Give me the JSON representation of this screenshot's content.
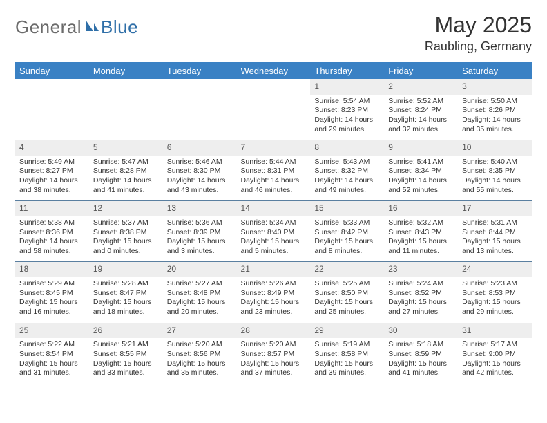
{
  "logo": {
    "part1": "General",
    "part2": "Blue"
  },
  "title": "May 2025",
  "location": "Raubling, Germany",
  "colors": {
    "header_bg": "#3a81c4",
    "header_text": "#ffffff",
    "daynum_bg": "#eeeeee",
    "rule": "#5a7fa0",
    "logo_gray": "#6b6b6b",
    "logo_blue": "#2f6fa8"
  },
  "weekdays": [
    "Sunday",
    "Monday",
    "Tuesday",
    "Wednesday",
    "Thursday",
    "Friday",
    "Saturday"
  ],
  "weeks": [
    {
      "nums": [
        "",
        "",
        "",
        "",
        "1",
        "2",
        "3"
      ],
      "cells": [
        "",
        "",
        "",
        "",
        "Sunrise: 5:54 AM\nSunset: 8:23 PM\nDaylight: 14 hours and 29 minutes.",
        "Sunrise: 5:52 AM\nSunset: 8:24 PM\nDaylight: 14 hours and 32 minutes.",
        "Sunrise: 5:50 AM\nSunset: 8:26 PM\nDaylight: 14 hours and 35 minutes."
      ]
    },
    {
      "nums": [
        "4",
        "5",
        "6",
        "7",
        "8",
        "9",
        "10"
      ],
      "cells": [
        "Sunrise: 5:49 AM\nSunset: 8:27 PM\nDaylight: 14 hours and 38 minutes.",
        "Sunrise: 5:47 AM\nSunset: 8:28 PM\nDaylight: 14 hours and 41 minutes.",
        "Sunrise: 5:46 AM\nSunset: 8:30 PM\nDaylight: 14 hours and 43 minutes.",
        "Sunrise: 5:44 AM\nSunset: 8:31 PM\nDaylight: 14 hours and 46 minutes.",
        "Sunrise: 5:43 AM\nSunset: 8:32 PM\nDaylight: 14 hours and 49 minutes.",
        "Sunrise: 5:41 AM\nSunset: 8:34 PM\nDaylight: 14 hours and 52 minutes.",
        "Sunrise: 5:40 AM\nSunset: 8:35 PM\nDaylight: 14 hours and 55 minutes."
      ]
    },
    {
      "nums": [
        "11",
        "12",
        "13",
        "14",
        "15",
        "16",
        "17"
      ],
      "cells": [
        "Sunrise: 5:38 AM\nSunset: 8:36 PM\nDaylight: 14 hours and 58 minutes.",
        "Sunrise: 5:37 AM\nSunset: 8:38 PM\nDaylight: 15 hours and 0 minutes.",
        "Sunrise: 5:36 AM\nSunset: 8:39 PM\nDaylight: 15 hours and 3 minutes.",
        "Sunrise: 5:34 AM\nSunset: 8:40 PM\nDaylight: 15 hours and 5 minutes.",
        "Sunrise: 5:33 AM\nSunset: 8:42 PM\nDaylight: 15 hours and 8 minutes.",
        "Sunrise: 5:32 AM\nSunset: 8:43 PM\nDaylight: 15 hours and 11 minutes.",
        "Sunrise: 5:31 AM\nSunset: 8:44 PM\nDaylight: 15 hours and 13 minutes."
      ]
    },
    {
      "nums": [
        "18",
        "19",
        "20",
        "21",
        "22",
        "23",
        "24"
      ],
      "cells": [
        "Sunrise: 5:29 AM\nSunset: 8:45 PM\nDaylight: 15 hours and 16 minutes.",
        "Sunrise: 5:28 AM\nSunset: 8:47 PM\nDaylight: 15 hours and 18 minutes.",
        "Sunrise: 5:27 AM\nSunset: 8:48 PM\nDaylight: 15 hours and 20 minutes.",
        "Sunrise: 5:26 AM\nSunset: 8:49 PM\nDaylight: 15 hours and 23 minutes.",
        "Sunrise: 5:25 AM\nSunset: 8:50 PM\nDaylight: 15 hours and 25 minutes.",
        "Sunrise: 5:24 AM\nSunset: 8:52 PM\nDaylight: 15 hours and 27 minutes.",
        "Sunrise: 5:23 AM\nSunset: 8:53 PM\nDaylight: 15 hours and 29 minutes."
      ]
    },
    {
      "nums": [
        "25",
        "26",
        "27",
        "28",
        "29",
        "30",
        "31"
      ],
      "cells": [
        "Sunrise: 5:22 AM\nSunset: 8:54 PM\nDaylight: 15 hours and 31 minutes.",
        "Sunrise: 5:21 AM\nSunset: 8:55 PM\nDaylight: 15 hours and 33 minutes.",
        "Sunrise: 5:20 AM\nSunset: 8:56 PM\nDaylight: 15 hours and 35 minutes.",
        "Sunrise: 5:20 AM\nSunset: 8:57 PM\nDaylight: 15 hours and 37 minutes.",
        "Sunrise: 5:19 AM\nSunset: 8:58 PM\nDaylight: 15 hours and 39 minutes.",
        "Sunrise: 5:18 AM\nSunset: 8:59 PM\nDaylight: 15 hours and 41 minutes.",
        "Sunrise: 5:17 AM\nSunset: 9:00 PM\nDaylight: 15 hours and 42 minutes."
      ]
    }
  ]
}
